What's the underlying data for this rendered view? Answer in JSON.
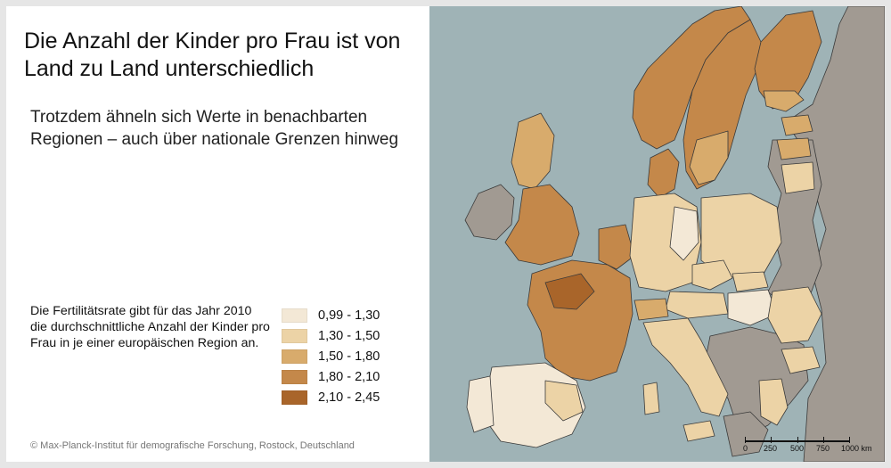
{
  "title": "Die Anzahl der Kinder pro Frau ist von Land zu Land unterschiedlich",
  "subtitle": "Trotzdem ähneln sich Werte in benachbarten Regionen – auch über nationale Grenzen hinweg",
  "description": "Die Fertilitätsrate gibt für das Jahr 2010 die durchschnittliche Anzahl der Kinder pro Frau in je einer europäischen Region an.",
  "legend": [
    {
      "label": "0,99 - 1,30",
      "color": "#f3e8d6"
    },
    {
      "label": "1,30 - 1,50",
      "color": "#ecd3a6"
    },
    {
      "label": "1,50 - 1,80",
      "color": "#d8ab6c"
    },
    {
      "label": "1,80 - 2,10",
      "color": "#c4884a"
    },
    {
      "label": "2,10 - 2,45",
      "color": "#a9652a"
    }
  ],
  "colors": {
    "sea": "#9fb3b6",
    "no_data": "#a19a92",
    "border": "#3a3a3a"
  },
  "scale": {
    "labels": [
      "0",
      "250",
      "500",
      "750",
      "1000 km"
    ]
  },
  "copyright": "© Max-Planck-Institut für demografische Forschung, Rostock, Deutschland"
}
